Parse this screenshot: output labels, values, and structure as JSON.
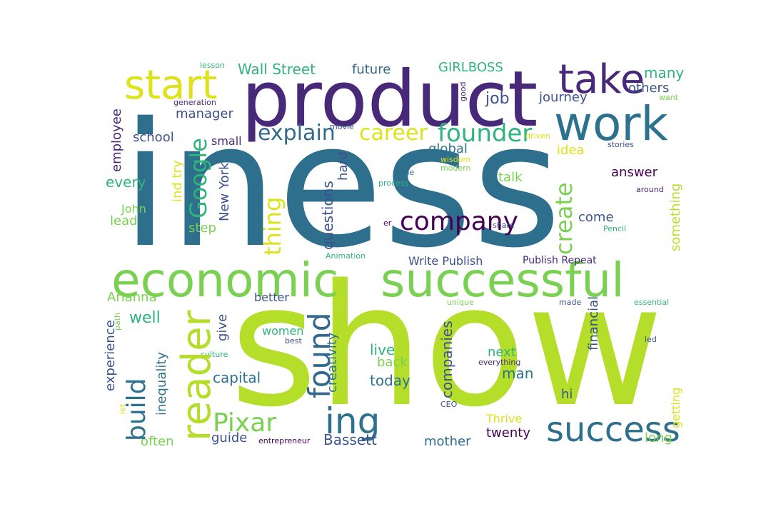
{
  "words": [
    {
      "text": "iness",
      "color": "#2e6f8e"
    },
    {
      "text": "show",
      "color": "#b5de2b"
    },
    {
      "text": "product",
      "color": "#482878"
    },
    {
      "text": "economic",
      "color": "#7ad151"
    },
    {
      "text": "successful",
      "color": "#7ad151"
    },
    {
      "text": "work",
      "color": "#2c728e"
    },
    {
      "text": "start",
      "color": "#b5de2b"
    },
    {
      "text": "take",
      "color": "#dde318"
    },
    {
      "text": "ing",
      "color": "#482878"
    },
    {
      "text": "success",
      "color": "#2c728e"
    },
    {
      "text": "Pixar",
      "color": "#2e6f8e"
    },
    {
      "text": "company",
      "color": "#7ad151"
    },
    {
      "text": "founder",
      "color": "#440154"
    },
    {
      "text": "career",
      "color": "#31688e"
    },
    {
      "text": "explain",
      "color": "#2c728e"
    },
    {
      "text": "reader",
      "color": "#2fb47c"
    },
    {
      "text": "found",
      "color": "#dde318"
    },
    {
      "text": "build",
      "color": "#31688e"
    },
    {
      "text": "create",
      "color": "#7ad151"
    },
    {
      "text": "Google",
      "color": "#2fb47c"
    },
    {
      "text": "thing",
      "color": "#dde318"
    },
    {
      "text": "Wall Street",
      "color": "#2fb47c"
    },
    {
      "text": "future",
      "color": "#31688e"
    },
    {
      "text": "GIRLBOSS",
      "color": "#2fb47c"
    },
    {
      "text": "many",
      "color": "#2fb47c"
    },
    {
      "text": "others",
      "color": "#3b528b"
    },
    {
      "text": "job",
      "color": "#3b528b"
    },
    {
      "text": "journey",
      "color": "#3b528b"
    },
    {
      "text": "manager",
      "color": "#3b528b"
    },
    {
      "text": "school",
      "color": "#3b528b"
    },
    {
      "text": "small",
      "color": "#482878"
    },
    {
      "text": "global",
      "color": "#2c728e"
    },
    {
      "text": "idea",
      "color": "#dde318"
    },
    {
      "text": "talk",
      "color": "#7ad151"
    },
    {
      "text": "answer",
      "color": "#440154"
    },
    {
      "text": "every",
      "color": "#2fb47c"
    },
    {
      "text": "John",
      "color": "#7ad151"
    },
    {
      "text": "lead",
      "color": "#7ad151"
    },
    {
      "text": "step",
      "color": "#7ad151"
    },
    {
      "text": "come",
      "color": "#3b528b"
    },
    {
      "text": "Arianna",
      "color": "#7ad151"
    },
    {
      "text": "better",
      "color": "#3b528b"
    },
    {
      "text": "well",
      "color": "#2fb47c"
    },
    {
      "text": "women",
      "color": "#2fb47c"
    },
    {
      "text": "live",
      "color": "#2fb47c"
    },
    {
      "text": "back",
      "color": "#7ad151"
    },
    {
      "text": "today",
      "color": "#2c728e"
    },
    {
      "text": "next",
      "color": "#2fb47c"
    },
    {
      "text": "man",
      "color": "#2c728e"
    },
    {
      "text": "hi",
      "color": "#3b528b"
    },
    {
      "text": "capital",
      "color": "#2c728e"
    },
    {
      "text": "guide",
      "color": "#3b528b"
    },
    {
      "text": "often",
      "color": "#7ad151"
    },
    {
      "text": "Bassett",
      "color": "#3b528b"
    },
    {
      "text": "mother",
      "color": "#2c728e"
    },
    {
      "text": "twenty",
      "color": "#440154"
    },
    {
      "text": "Thrive",
      "color": "#dde318"
    },
    {
      "text": "long",
      "color": "#7ad151"
    },
    {
      "text": "Write Publish",
      "color": "#3b528b"
    },
    {
      "text": "Publish Repeat",
      "color": "#482878"
    },
    {
      "text": "lesson",
      "color": "#2fb47c"
    },
    {
      "text": "generation",
      "color": "#482878"
    },
    {
      "text": "want",
      "color": "#7ad151"
    },
    {
      "text": "movie",
      "color": "#3b528b"
    },
    {
      "text": "driven",
      "color": "#dde318"
    },
    {
      "text": "stories",
      "color": "#3b528b"
    },
    {
      "text": "wisdom",
      "color": "#dde318"
    },
    {
      "text": "modern",
      "color": "#7ad151"
    },
    {
      "text": "came",
      "color": "#2c728e"
    },
    {
      "text": "process",
      "color": "#2fb47c"
    },
    {
      "text": "around",
      "color": "#482878"
    },
    {
      "text": "er",
      "color": "#440154"
    },
    {
      "text": "share",
      "color": "#3b528b"
    },
    {
      "text": "Pencil",
      "color": "#2fb47c"
    },
    {
      "text": "Animation",
      "color": "#2fb47c"
    },
    {
      "text": "unique",
      "color": "#7ad151"
    },
    {
      "text": "made",
      "color": "#3b528b"
    },
    {
      "text": "essential",
      "color": "#2fb47c"
    },
    {
      "text": "best",
      "color": "#3b528b"
    },
    {
      "text": "culture",
      "color": "#2fb47c"
    },
    {
      "text": "led",
      "color": "#3b528b"
    },
    {
      "text": "everything",
      "color": "#482878"
    },
    {
      "text": "CEO",
      "color": "#3b528b"
    },
    {
      "text": "entrepreneur",
      "color": "#440154"
    },
    {
      "text": "employee",
      "color": "#482878"
    },
    {
      "text": "ind try",
      "color": "#dde318"
    },
    {
      "text": "New York",
      "color": "#3b528b"
    },
    {
      "text": "questions",
      "color": "#3b528b"
    },
    {
      "text": "hard",
      "color": "#3b528b"
    },
    {
      "text": "something",
      "color": "#b5de2b"
    },
    {
      "text": "experience",
      "color": "#3b528b"
    },
    {
      "text": "path",
      "color": "#7ad151"
    },
    {
      "text": "inequality",
      "color": "#2c728e"
    },
    {
      "text": "give",
      "color": "#3b528b"
    },
    {
      "text": "creativity",
      "color": "#2c728e"
    },
    {
      "text": "companies",
      "color": "#3b528b"
    },
    {
      "text": "financial",
      "color": "#3b528b"
    },
    {
      "text": "getting",
      "color": "#dde318"
    },
    {
      "text": "let",
      "color": "#dde318"
    },
    {
      "text": "good",
      "color": "#482878"
    }
  ]
}
